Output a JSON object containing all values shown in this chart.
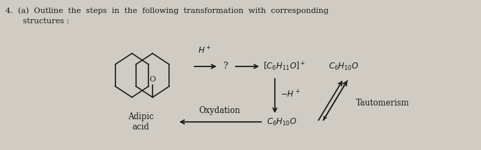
{
  "bg_color": "#d0ccc4",
  "title_line1": "4.  (a)  Outline  the  steps  in  the  following  transformation  with  corresponding",
  "title_line2": "       structures :",
  "arrow_color": "#1a1a1a",
  "text_color": "#1a1a1a",
  "label_Hplus": "H$^+$",
  "label_minusHplus": "-H$^+$",
  "label_tautomerism": "Tautomerism",
  "label_oxydation": "Oxydation",
  "label_adipic": "Adipic\nacid",
  "label_question": "?",
  "figsize": [
    7.0,
    2.19
  ],
  "dpi": 100
}
